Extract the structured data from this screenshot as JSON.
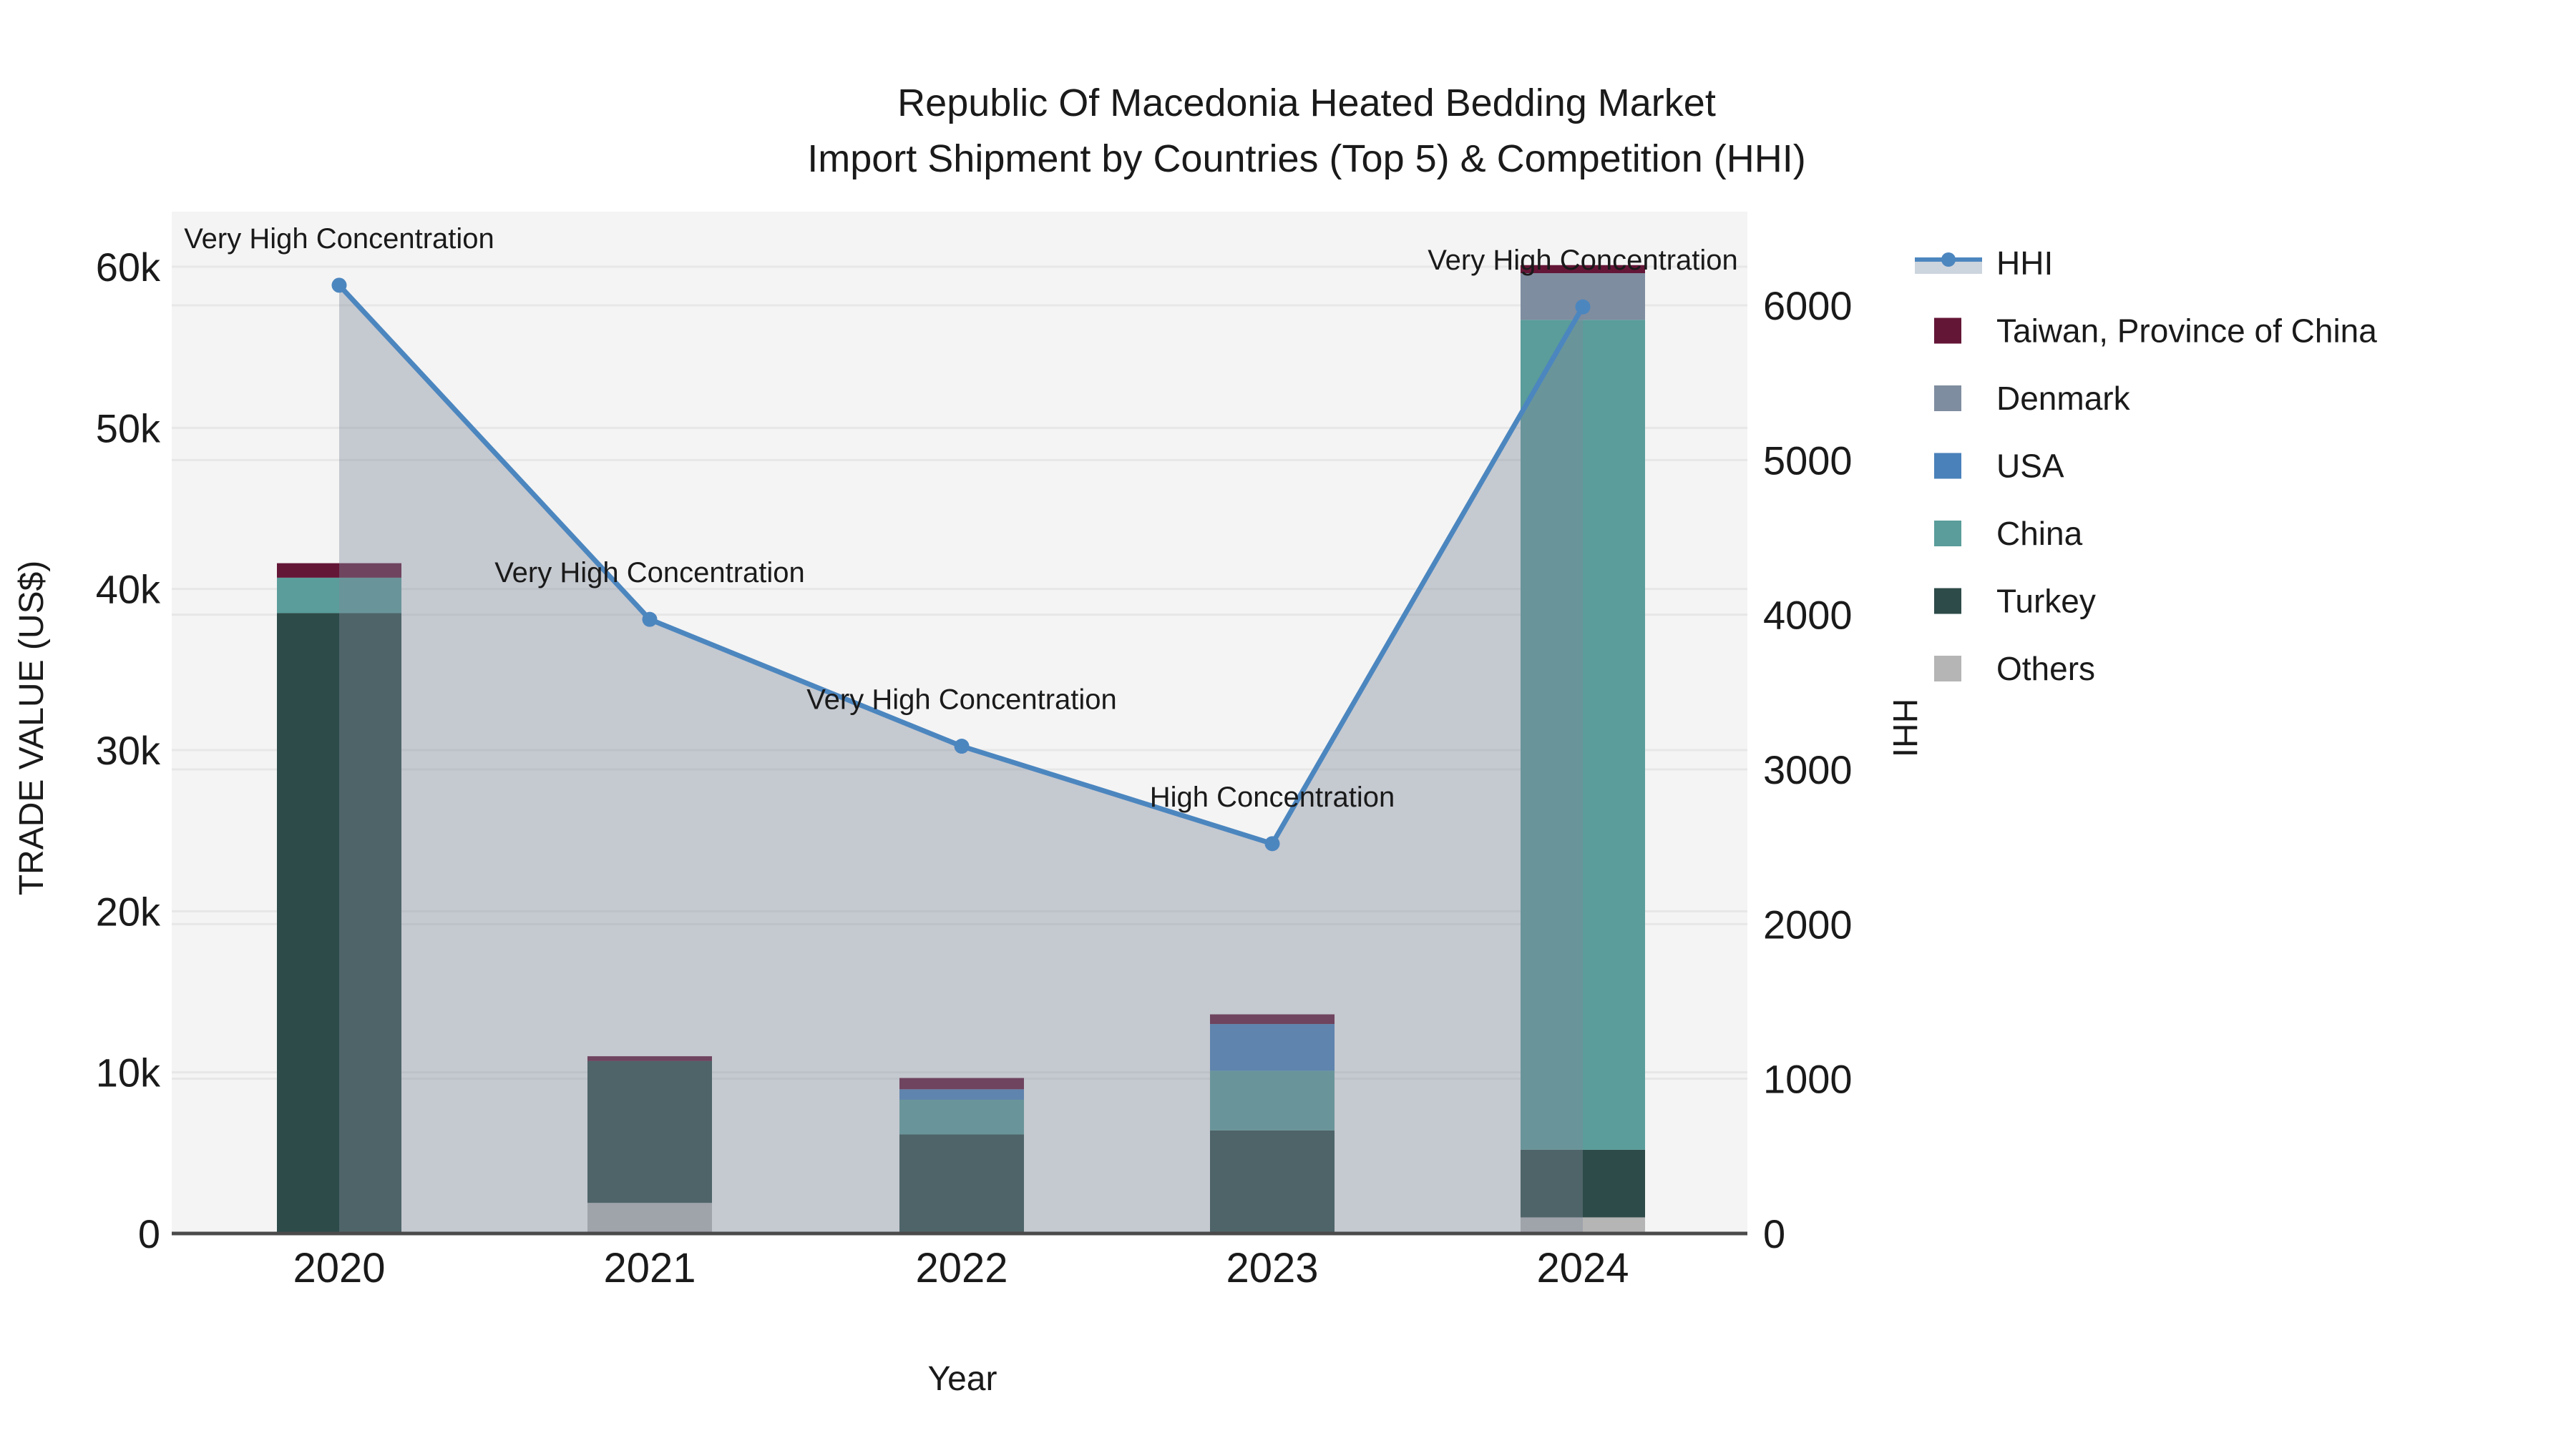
{
  "title": {
    "line1": "Republic Of Macedonia Heated Bedding Market",
    "line2": "Import Shipment by Countries (Top 5) & Competition (HHI)"
  },
  "chart_data": {
    "type": "combo-stacked-bar-line",
    "categories": [
      "2020",
      "2021",
      "2022",
      "2023",
      "2024"
    ],
    "x_title": "Year",
    "y_left": {
      "title": "TRADE VALUE (US$)",
      "max": 60000,
      "tick_values": [
        0,
        10000,
        20000,
        30000,
        40000,
        50000,
        60000
      ],
      "tick_labels": [
        "0",
        "10k",
        "20k",
        "30k",
        "40k",
        "50k",
        "60k"
      ]
    },
    "y_right": {
      "title": "HHI",
      "max": 6000,
      "tick_values": [
        0,
        1000,
        2000,
        3000,
        4000,
        5000,
        6000
      ],
      "tick_labels": [
        "0",
        "1000",
        "2000",
        "3000",
        "4000",
        "5000",
        "6000"
      ]
    },
    "bar_series": [
      {
        "name": "Others",
        "color": "#b5b5b5",
        "values": [
          0,
          1900,
          0,
          0,
          1000
        ]
      },
      {
        "name": "Turkey",
        "color": "#2d4b49",
        "values": [
          38500,
          8800,
          6150,
          6400,
          4200
        ]
      },
      {
        "name": "China",
        "color": "#5a9d9a",
        "values": [
          2200,
          0,
          2150,
          3700,
          51500
        ]
      },
      {
        "name": "USA",
        "color": "#4a81ba",
        "values": [
          0,
          0,
          650,
          2900,
          0
        ]
      },
      {
        "name": "Denmark",
        "color": "#7f8da0",
        "values": [
          0,
          0,
          0,
          0,
          2900
        ]
      },
      {
        "name": "Taiwan, Province of China",
        "color": "#641637",
        "values": [
          900,
          300,
          700,
          600,
          500
        ]
      }
    ],
    "line_series": {
      "name": "HHI",
      "values": [
        6130,
        3970,
        3150,
        2520,
        5990
      ]
    },
    "annotations": [
      {
        "x": "2020",
        "text": "Very High Concentration"
      },
      {
        "x": "2021",
        "text": "Very High Concentration"
      },
      {
        "x": "2022",
        "text": "Very High Concentration"
      },
      {
        "x": "2023",
        "text": "High Concentration"
      },
      {
        "x": "2024",
        "text": "Very High Concentration"
      }
    ],
    "legend": [
      {
        "label": "HHI",
        "type": "line"
      },
      {
        "label": "Taiwan, Province of China",
        "type": "swatch",
        "color": "#641637"
      },
      {
        "label": "Denmark",
        "type": "swatch",
        "color": "#7f8da0"
      },
      {
        "label": "USA",
        "type": "swatch",
        "color": "#4a81ba"
      },
      {
        "label": "China",
        "type": "swatch",
        "color": "#5a9d9a"
      },
      {
        "label": "Turkey",
        "type": "swatch",
        "color": "#2d4b49"
      },
      {
        "label": "Others",
        "type": "swatch",
        "color": "#b5b5b5"
      }
    ]
  },
  "colors": {
    "hhi_line": "#4c86bf",
    "hhi_fill": "rgba(128,138,155,0.40)",
    "legend_band": "#ccd4dd",
    "plot_bg": "#f4f4f4",
    "grid": "#e7e7e7",
    "axis_line": "#4a4a4a"
  }
}
